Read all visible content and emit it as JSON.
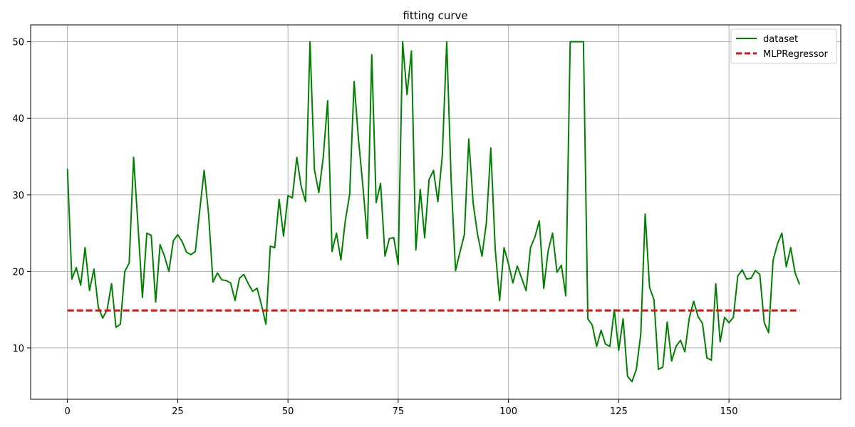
{
  "chart_data": {
    "type": "line",
    "title": "fitting curve",
    "xlabel": "",
    "ylabel": "",
    "xlim": [
      -8.35,
      175.35
    ],
    "ylim": [
      3.3,
      52.2
    ],
    "xticks": [
      0,
      25,
      50,
      75,
      100,
      125,
      150
    ],
    "yticks": [
      10,
      20,
      30,
      40,
      50
    ],
    "grid": true,
    "legend_position": "top-right",
    "series": [
      {
        "name": "dataset",
        "color": "#008000",
        "style": "solid",
        "x": [
          0,
          1,
          2,
          3,
          4,
          5,
          6,
          7,
          8,
          9,
          10,
          11,
          12,
          13,
          14,
          15,
          16,
          17,
          18,
          19,
          20,
          21,
          22,
          23,
          24,
          25,
          26,
          27,
          28,
          29,
          30,
          31,
          32,
          33,
          34,
          35,
          36,
          37,
          38,
          39,
          40,
          41,
          42,
          43,
          44,
          45,
          46,
          47,
          48,
          49,
          50,
          51,
          52,
          53,
          54,
          55,
          56,
          57,
          58,
          59,
          60,
          61,
          62,
          63,
          64,
          65,
          66,
          67,
          68,
          69,
          70,
          71,
          72,
          73,
          74,
          75,
          76,
          77,
          78,
          79,
          80,
          81,
          82,
          83,
          84,
          85,
          86,
          87,
          88,
          89,
          90,
          91,
          92,
          93,
          94,
          95,
          96,
          97,
          98,
          99,
          100,
          101,
          102,
          103,
          104,
          105,
          106,
          107,
          108,
          109,
          110,
          111,
          112,
          113,
          114,
          115,
          116,
          117,
          118,
          119,
          120,
          121,
          122,
          123,
          124,
          125,
          126,
          127,
          128,
          129,
          130,
          131,
          132,
          133,
          134,
          135,
          136,
          137,
          138,
          139,
          140,
          141,
          142,
          143,
          144,
          145,
          146,
          147,
          148,
          149,
          150,
          151,
          152,
          153,
          154,
          155,
          156,
          157,
          158,
          159,
          160,
          161,
          162,
          163,
          164,
          165,
          166
        ],
        "values": [
          33.4,
          19.0,
          20.5,
          18.2,
          23.1,
          17.5,
          20.3,
          15.3,
          13.9,
          15.0,
          18.4,
          12.7,
          13.1,
          20.0,
          21.1,
          34.9,
          26.0,
          16.6,
          25.0,
          24.7,
          16.0,
          23.5,
          22.0,
          20.0,
          24.0,
          24.8,
          23.9,
          22.5,
          22.2,
          22.6,
          28.0,
          33.2,
          27.5,
          18.6,
          19.8,
          18.9,
          18.8,
          18.5,
          16.2,
          19.1,
          19.6,
          18.4,
          17.4,
          17.8,
          15.6,
          13.1,
          23.3,
          23.1,
          29.4,
          24.6,
          29.9,
          29.6,
          34.9,
          31.1,
          29.1,
          50.0,
          33.3,
          30.3,
          34.9,
          42.3,
          22.6,
          25.0,
          21.5,
          26.6,
          30.1,
          44.8,
          37.2,
          31.1,
          24.3,
          48.3,
          29.0,
          31.5,
          22.0,
          24.3,
          24.4,
          20.9,
          50.0,
          43.1,
          48.8,
          22.8,
          30.7,
          24.4,
          32.0,
          33.2,
          29.1,
          35.1,
          50.0,
          32.0,
          20.1,
          22.5,
          24.8,
          37.3,
          28.9,
          24.8,
          22.0,
          26.4,
          36.1,
          22.9,
          16.2,
          23.1,
          21.0,
          18.5,
          20.7,
          19.1,
          17.5,
          23.1,
          24.5,
          26.6,
          17.8,
          22.7,
          25.0,
          19.9,
          20.8,
          16.8,
          50.0,
          50.0,
          50.0,
          50.0,
          13.8,
          13.0,
          10.2,
          12.3,
          10.5,
          10.2,
          15.0,
          9.7,
          13.8,
          6.3,
          5.6,
          7.2,
          11.8,
          27.5,
          17.9,
          16.3,
          7.2,
          7.5,
          13.4,
          8.3,
          10.2,
          11.0,
          9.5,
          13.9,
          16.1,
          14.1,
          13.2,
          8.7,
          8.4,
          18.4,
          10.8,
          14.0,
          13.3,
          14.0,
          19.4,
          20.2,
          19.0,
          19.1,
          20.1,
          19.6,
          13.3,
          12.0,
          21.4,
          23.6,
          25.0,
          20.6,
          23.1,
          19.8,
          18.3
        ]
      },
      {
        "name": "MLPRegressor",
        "color": "#dd1111",
        "style": "dashed",
        "x": [
          0,
          166
        ],
        "values": [
          14.9,
          14.9
        ]
      }
    ]
  }
}
